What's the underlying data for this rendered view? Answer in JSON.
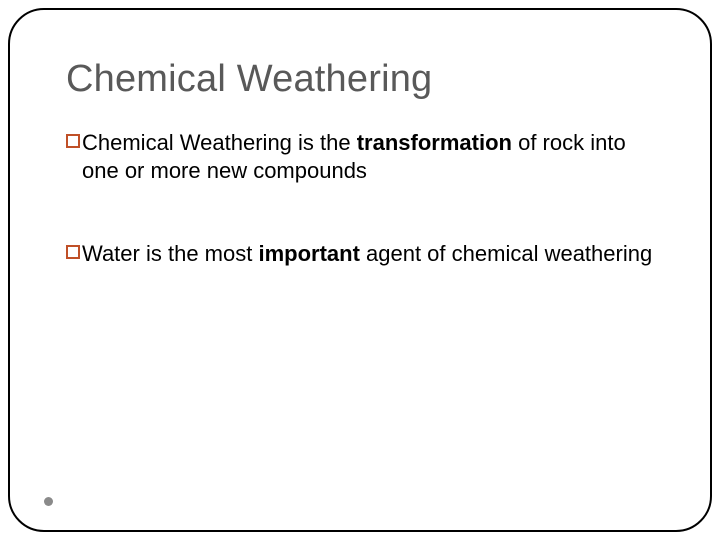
{
  "slide": {
    "title": "Chemical Weathering",
    "title_color": "#595959",
    "title_fontsize": 38,
    "bullets": [
      {
        "segments": [
          {
            "text": "Chemical Weathering is the ",
            "bold": false
          },
          {
            "text": "transformation",
            "bold": true
          },
          {
            "text": " of rock into one or more new compounds",
            "bold": false
          }
        ]
      },
      {
        "segments": [
          {
            "text": "Water is the most ",
            "bold": false
          },
          {
            "text": "important",
            "bold": true
          },
          {
            "text": " agent of chemical weathering",
            "bold": false
          }
        ]
      }
    ],
    "bullet_marker_color": "#c05028",
    "body_fontsize": 22,
    "body_color": "#000000",
    "frame_border_color": "#000000",
    "frame_border_radius": 36,
    "background_color": "#ffffff",
    "page_dot_color": "#8a8a8a"
  }
}
